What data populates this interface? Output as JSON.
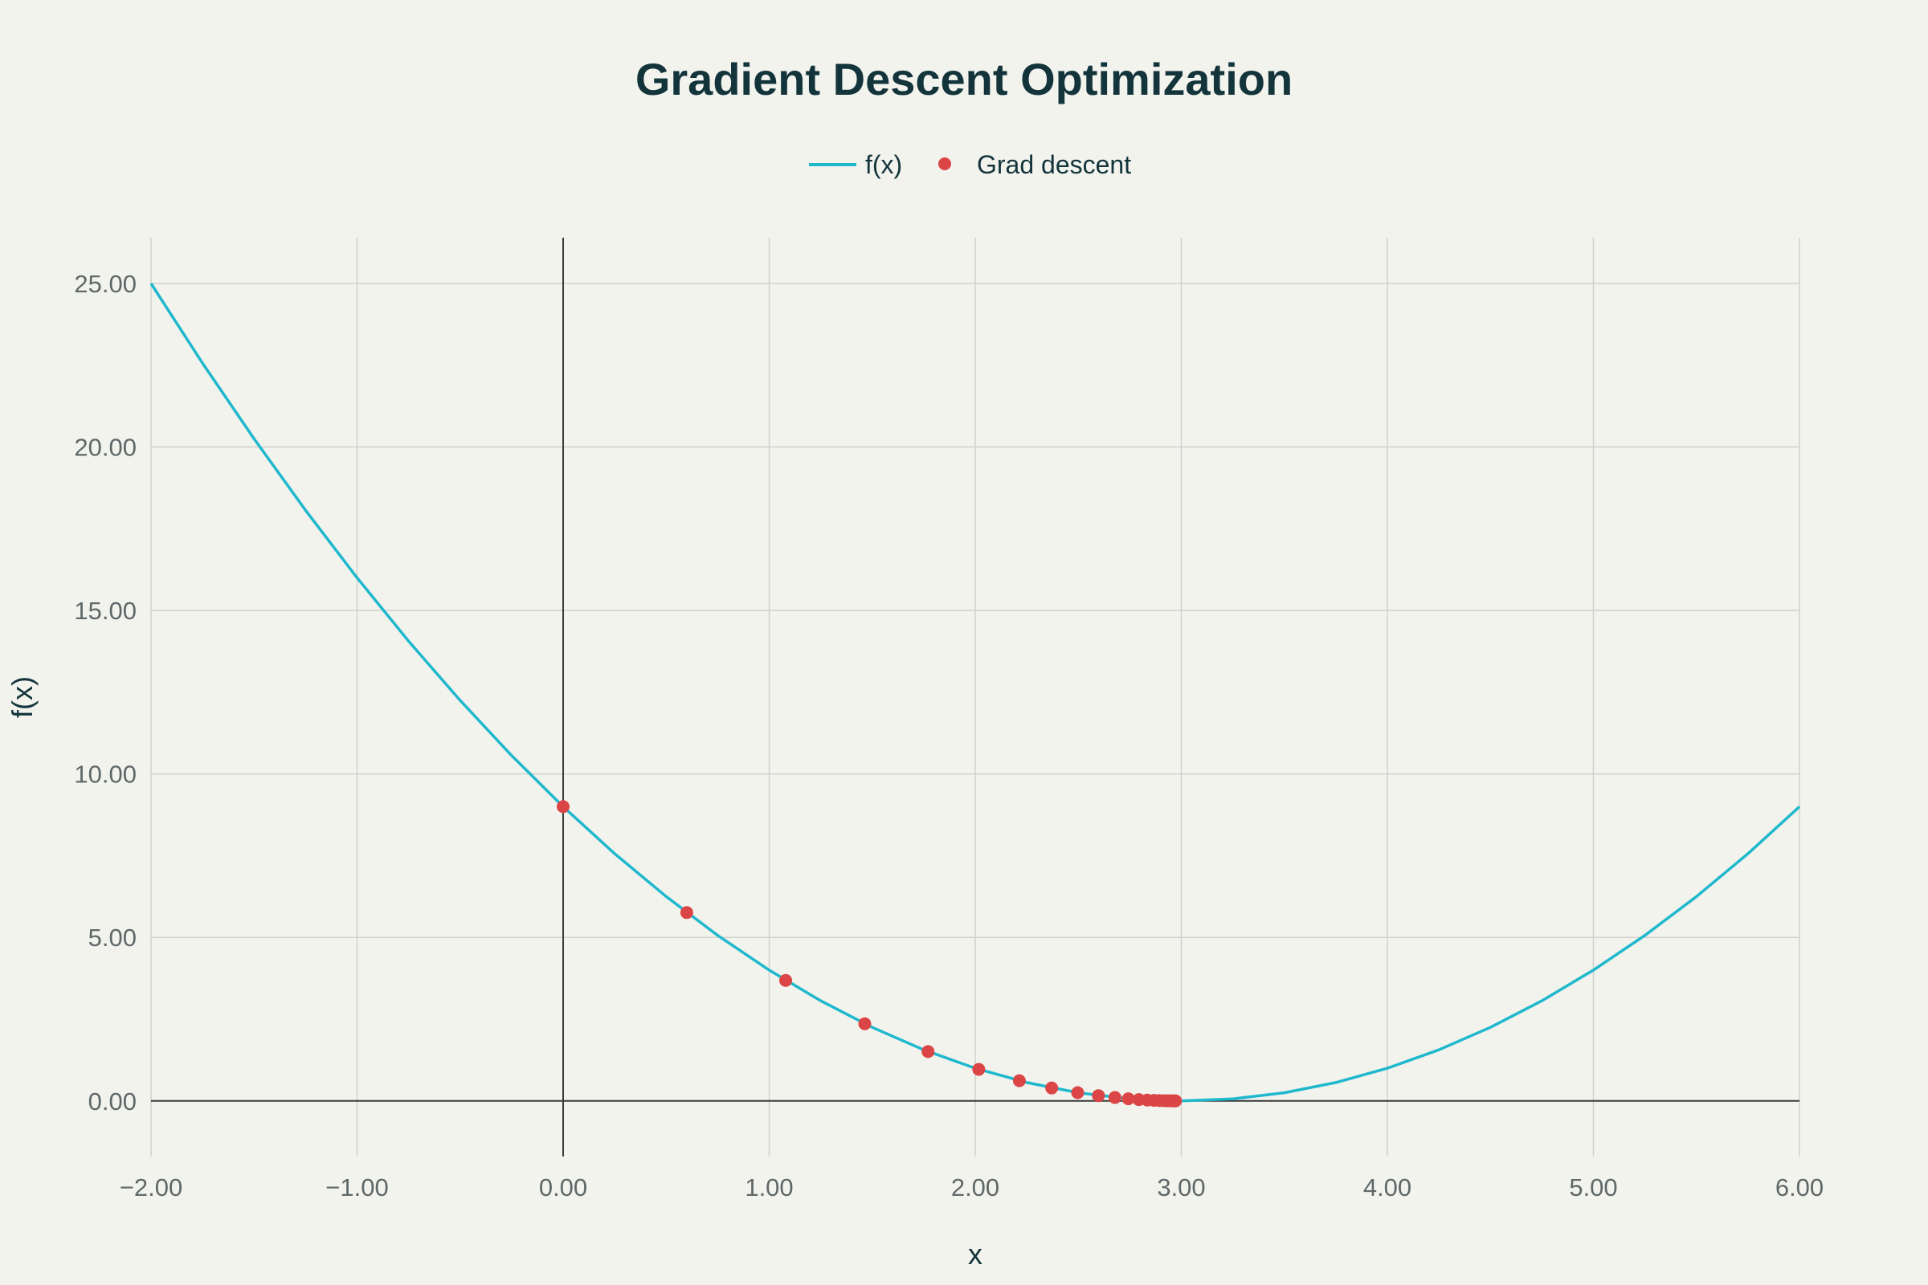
{
  "chart_data": {
    "type": "line",
    "title": "Gradient Descent Optimization",
    "xlabel": "x",
    "ylabel": "f(x)",
    "xlim": [
      -2,
      6
    ],
    "ylim": [
      -1.7,
      26.4
    ],
    "x_ticks": [
      -2,
      -1,
      0,
      1,
      2,
      3,
      4,
      5,
      6
    ],
    "x_tick_labels": [
      "−2.00",
      "−1.00",
      "0.00",
      "1.00",
      "2.00",
      "3.00",
      "4.00",
      "5.00",
      "6.00"
    ],
    "y_ticks": [
      0,
      5,
      10,
      15,
      20,
      25
    ],
    "y_tick_labels": [
      "0.00",
      "5.00",
      "10.00",
      "15.00",
      "20.00",
      "25.00"
    ],
    "grid": true,
    "legend_position": "top-center",
    "series": [
      {
        "name": "f(x)",
        "mode": "line",
        "color": "#1fb8cd",
        "x": [
          -2.0,
          -1.75,
          -1.5,
          -1.25,
          -1.0,
          -0.75,
          -0.5,
          -0.25,
          0.0,
          0.25,
          0.5,
          0.75,
          1.0,
          1.25,
          1.5,
          1.75,
          2.0,
          2.25,
          2.5,
          2.75,
          3.0,
          3.25,
          3.5,
          3.75,
          4.0,
          4.25,
          4.5,
          4.75,
          5.0,
          5.25,
          5.5,
          5.75,
          6.0
        ],
        "y": [
          25.0,
          22.5625,
          20.25,
          18.0625,
          16.0,
          14.0625,
          12.25,
          10.5625,
          9.0,
          7.5625,
          6.25,
          5.0625,
          4.0,
          3.0625,
          2.25,
          1.5625,
          1.0,
          0.5625,
          0.25,
          0.0625,
          0.0,
          0.0625,
          0.25,
          0.5625,
          1.0,
          1.5625,
          2.25,
          3.0625,
          4.0,
          5.0625,
          6.25,
          7.5625,
          9.0
        ]
      },
      {
        "name": "Grad descent",
        "mode": "markers",
        "color": "#db4545",
        "x": [
          0.0,
          0.6,
          1.08,
          1.464,
          1.771,
          2.017,
          2.214,
          2.371,
          2.497,
          2.598,
          2.678,
          2.743,
          2.794,
          2.835,
          2.868,
          2.894,
          2.916,
          2.932,
          2.946,
          2.957,
          2.965,
          2.972
        ],
        "y": [
          9.0,
          5.76,
          3.686,
          2.359,
          1.51,
          0.966,
          0.618,
          0.396,
          0.253,
          0.162,
          0.104,
          0.066,
          0.042,
          0.027,
          0.017,
          0.011,
          0.007,
          0.005,
          0.003,
          0.002,
          0.001,
          0.001
        ]
      }
    ]
  }
}
